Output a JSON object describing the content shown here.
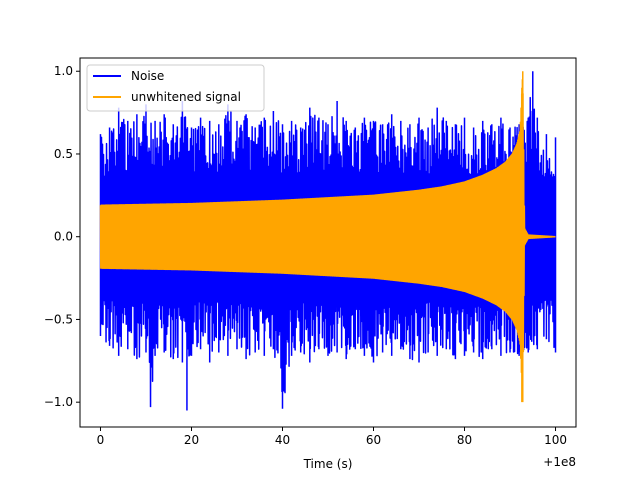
{
  "chart_data": {
    "type": "line",
    "title": "",
    "xlabel": "Time (s)",
    "ylabel": "",
    "x_offset_label": "+1e8",
    "xlim": [
      -4.5,
      104.5
    ],
    "ylim": [
      -1.15,
      1.08
    ],
    "x_ticks": [
      0,
      20,
      40,
      60,
      80,
      100
    ],
    "x_tick_labels": [
      "0",
      "20",
      "40",
      "60",
      "80",
      "100"
    ],
    "y_ticks": [
      -1.0,
      -0.5,
      0.0,
      0.5,
      1.0
    ],
    "y_tick_labels": [
      "−1.0",
      "−0.5",
      "0.0",
      "0.5",
      "1.0"
    ],
    "grid": false,
    "legend_position": "upper-left",
    "series": [
      {
        "name": "Noise",
        "color": "#0000ff",
        "x_range": [
          0,
          100
        ],
        "upper_envelope": [
          [
            0,
            0.62
          ],
          [
            2,
            0.66
          ],
          [
            4,
            0.78
          ],
          [
            6,
            0.7
          ],
          [
            8,
            0.74
          ],
          [
            10,
            0.8
          ],
          [
            12,
            0.7
          ],
          [
            14,
            0.74
          ],
          [
            16,
            0.68
          ],
          [
            18,
            0.82
          ],
          [
            20,
            0.66
          ],
          [
            22,
            0.72
          ],
          [
            24,
            0.7
          ],
          [
            26,
            0.68
          ],
          [
            28,
            0.8
          ],
          [
            30,
            0.7
          ],
          [
            32,
            0.74
          ],
          [
            34,
            0.66
          ],
          [
            36,
            0.72
          ],
          [
            38,
            0.76
          ],
          [
            40,
            0.68
          ],
          [
            42,
            0.7
          ],
          [
            44,
            0.66
          ],
          [
            46,
            0.78
          ],
          [
            48,
            0.72
          ],
          [
            50,
            0.68
          ],
          [
            52,
            0.82
          ],
          [
            54,
            0.7
          ],
          [
            56,
            0.66
          ],
          [
            58,
            0.72
          ],
          [
            60,
            0.7
          ],
          [
            62,
            0.68
          ],
          [
            64,
            0.74
          ],
          [
            66,
            0.7
          ],
          [
            68,
            0.68
          ],
          [
            70,
            0.72
          ],
          [
            72,
            0.66
          ],
          [
            74,
            0.78
          ],
          [
            76,
            0.7
          ],
          [
            78,
            0.68
          ],
          [
            80,
            0.72
          ],
          [
            82,
            0.66
          ],
          [
            84,
            0.7
          ],
          [
            86,
            0.68
          ],
          [
            88,
            0.72
          ],
          [
            90,
            0.66
          ],
          [
            92,
            0.68
          ],
          [
            94,
            0.72
          ],
          [
            95,
            1.0
          ],
          [
            96,
            0.72
          ],
          [
            98,
            0.62
          ],
          [
            100,
            0.6
          ]
        ],
        "lower_envelope": [
          [
            0,
            -0.6
          ],
          [
            2,
            -0.66
          ],
          [
            4,
            -0.72
          ],
          [
            6,
            -0.68
          ],
          [
            8,
            -0.74
          ],
          [
            10,
            -0.7
          ],
          [
            11,
            -1.03
          ],
          [
            12,
            -0.72
          ],
          [
            14,
            -0.7
          ],
          [
            16,
            -0.74
          ],
          [
            18,
            -0.76
          ],
          [
            19,
            -1.05
          ],
          [
            20,
            -0.72
          ],
          [
            22,
            -0.68
          ],
          [
            24,
            -0.76
          ],
          [
            26,
            -0.7
          ],
          [
            28,
            -0.72
          ],
          [
            30,
            -0.68
          ],
          [
            32,
            -0.74
          ],
          [
            34,
            -0.7
          ],
          [
            36,
            -0.72
          ],
          [
            38,
            -0.68
          ],
          [
            40,
            -1.04
          ],
          [
            42,
            -0.72
          ],
          [
            44,
            -0.7
          ],
          [
            46,
            -0.76
          ],
          [
            48,
            -0.68
          ],
          [
            50,
            -0.72
          ],
          [
            52,
            -0.7
          ],
          [
            54,
            -0.74
          ],
          [
            56,
            -0.68
          ],
          [
            58,
            -0.72
          ],
          [
            60,
            -0.76
          ],
          [
            62,
            -0.7
          ],
          [
            64,
            -0.72
          ],
          [
            66,
            -0.68
          ],
          [
            68,
            -0.74
          ],
          [
            70,
            -0.76
          ],
          [
            72,
            -0.7
          ],
          [
            74,
            -0.72
          ],
          [
            76,
            -0.68
          ],
          [
            78,
            -0.74
          ],
          [
            80,
            -0.72
          ],
          [
            82,
            -0.7
          ],
          [
            84,
            -0.74
          ],
          [
            86,
            -0.68
          ],
          [
            88,
            -0.72
          ],
          [
            90,
            -0.7
          ],
          [
            92,
            -0.72
          ],
          [
            94,
            -0.7
          ],
          [
            96,
            -0.68
          ],
          [
            98,
            -0.62
          ],
          [
            100,
            -0.7
          ]
        ]
      },
      {
        "name": "unwhitened signal",
        "color": "#ffa500",
        "x_range": [
          0,
          100
        ],
        "amplitude_envelope": [
          [
            0,
            0.19
          ],
          [
            10,
            0.195
          ],
          [
            20,
            0.2
          ],
          [
            30,
            0.21
          ],
          [
            40,
            0.22
          ],
          [
            50,
            0.235
          ],
          [
            60,
            0.25
          ],
          [
            70,
            0.28
          ],
          [
            75,
            0.3
          ],
          [
            80,
            0.33
          ],
          [
            84,
            0.37
          ],
          [
            87,
            0.41
          ],
          [
            89,
            0.45
          ],
          [
            90.5,
            0.5
          ],
          [
            91.5,
            0.56
          ],
          [
            92.2,
            0.64
          ],
          [
            92.8,
            1.0
          ],
          [
            93.2,
            0.05
          ],
          [
            94,
            0.01
          ],
          [
            100,
            0.0
          ]
        ]
      }
    ]
  }
}
